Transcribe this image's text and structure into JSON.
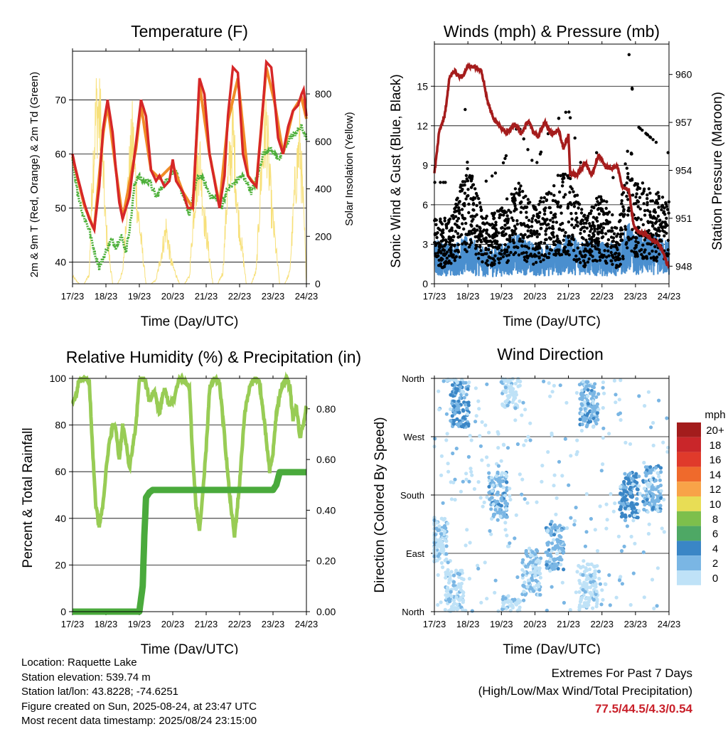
{
  "chart_data": [
    {
      "type": "line",
      "title": "Temperature (F)",
      "xlabel": "Time (Day/UTC)",
      "ylabel_left": "2m & 9m T (Red, Orange) & 2m Td (Green)",
      "ylabel_right": "Solar Insolation (Yellow)",
      "x_ticks": [
        "17/23",
        "18/23",
        "19/23",
        "20/23",
        "21/23",
        "22/23",
        "23/23",
        "24/23"
      ],
      "ylim": [
        36,
        79
      ],
      "y_ticks": [
        40,
        50,
        60,
        70
      ],
      "y2lim": [
        0,
        980
      ],
      "y2_ticks": [
        0,
        200,
        400,
        600,
        800
      ],
      "grid": true,
      "colors": {
        "t2m": "#d62728",
        "t9m": "#f08c28",
        "td": "#4db03a",
        "solar": "#f7e07a"
      },
      "series": [
        {
          "name": "2m T",
          "x": [
            0,
            0.1,
            0.35,
            0.5,
            0.65,
            0.8,
            0.92,
            1.05,
            1.2,
            1.3,
            1.4,
            1.5,
            1.7,
            1.9,
            2.05,
            2.2,
            2.35,
            2.5,
            2.6,
            2.75,
            2.9,
            3.0,
            3.1,
            3.3,
            3.45,
            3.6,
            3.7,
            3.8,
            3.95,
            4.1,
            4.25,
            4.4,
            4.55,
            4.65,
            4.8,
            4.95,
            5.1,
            5.25,
            5.35,
            5.5,
            5.65,
            5.8,
            5.95,
            6.05,
            6.15,
            6.3,
            6.45,
            6.6,
            6.75,
            6.85,
            6.92,
            7.0
          ],
          "values": [
            60,
            57,
            51,
            48,
            46,
            54,
            65,
            70,
            64,
            57,
            51,
            48,
            52,
            62,
            70,
            67,
            57,
            55,
            56,
            54,
            55,
            59,
            55,
            53,
            50,
            50,
            62,
            74,
            71,
            60,
            55,
            50,
            56,
            67,
            76,
            75,
            60,
            56,
            55,
            54,
            65,
            77,
            76,
            70,
            63,
            60,
            65,
            68,
            69,
            71,
            72,
            67
          ]
        },
        {
          "name": "9m T",
          "x": [
            0,
            0.35,
            0.65,
            0.92,
            1.05,
            1.3,
            1.5,
            1.9,
            2.05,
            2.35,
            2.6,
            3.0,
            3.3,
            3.6,
            3.8,
            4.1,
            4.4,
            4.65,
            4.95,
            5.25,
            5.5,
            5.8,
            6.05,
            6.3,
            6.6,
            6.85,
            7.0
          ],
          "values": [
            59.5,
            50.5,
            46,
            64,
            69,
            57,
            48,
            61,
            69,
            57,
            55.5,
            58,
            53,
            50,
            73,
            60,
            50.5,
            66,
            74,
            56,
            54,
            76,
            69.5,
            60,
            68,
            70.5,
            66.5
          ]
        },
        {
          "name": "2m Td",
          "x": [
            0,
            0.15,
            0.3,
            0.5,
            0.65,
            0.8,
            1.0,
            1.15,
            1.3,
            1.45,
            1.6,
            1.75,
            1.85,
            1.95,
            2.1,
            2.3,
            2.5,
            2.7,
            2.9,
            3.1,
            3.3,
            3.5,
            3.7,
            3.85,
            4.0,
            4.15,
            4.3,
            4.45,
            4.6,
            4.75,
            4.9,
            5.05,
            5.2,
            5.35,
            5.5,
            5.7,
            5.9,
            6.05,
            6.2,
            6.35,
            6.5,
            6.7,
            6.85,
            7.0
          ],
          "values": [
            59,
            53,
            49,
            46,
            42,
            39,
            42,
            44,
            43,
            45,
            42,
            48,
            54,
            56,
            55,
            55,
            52,
            54,
            56,
            57,
            52,
            49,
            55,
            56,
            54,
            52,
            52,
            50,
            53,
            54,
            55,
            56,
            55,
            53,
            55,
            60,
            61,
            60,
            59,
            61,
            63,
            64,
            65,
            63
          ]
        },
        {
          "name": "Solar Insolation",
          "x": [
            0,
            0.2,
            0.35,
            0.5,
            0.6,
            0.72,
            0.85,
            1.0,
            1.2,
            1.35,
            1.5,
            1.65,
            1.8,
            1.95,
            2.2,
            2.35,
            2.5,
            2.65,
            2.8,
            2.95,
            3.2,
            3.35,
            3.5,
            3.65,
            3.8,
            3.95,
            4.2,
            4.35,
            4.5,
            4.65,
            4.8,
            4.95,
            5.2,
            5.35,
            5.5,
            5.65,
            5.8,
            5.95,
            6.2,
            6.35,
            6.5,
            6.65,
            6.8,
            6.95,
            7.0
          ],
          "values": [
            40,
            0,
            0,
            50,
            600,
            960,
            850,
            300,
            0,
            0,
            60,
            500,
            800,
            400,
            0,
            0,
            20,
            150,
            300,
            120,
            0,
            0,
            40,
            450,
            700,
            350,
            0,
            0,
            60,
            550,
            820,
            380,
            0,
            0,
            70,
            600,
            860,
            420,
            0,
            0,
            60,
            500,
            780,
            250,
            0
          ]
        }
      ]
    },
    {
      "type": "line",
      "title": "Winds (mph) & Pressure (mb)",
      "xlabel": "Time (Day/UTC)",
      "ylabel_left": "Sonic Wind & Gust (Blue, Black)",
      "ylabel_right": "Station Pressure (Maroon)",
      "x_ticks": [
        "17/23",
        "18/23",
        "19/23",
        "20/23",
        "21/23",
        "22/23",
        "23/23",
        "24/23"
      ],
      "ylim": [
        0,
        18.2
      ],
      "y_ticks": [
        0,
        3,
        6,
        9,
        12,
        15
      ],
      "y2lim": [
        946.9,
        961.9
      ],
      "y2_ticks": [
        948,
        951,
        954,
        957,
        960
      ],
      "grid": true,
      "colors": {
        "wind": "#4a8fcf",
        "gust": "#000000",
        "pressure": "#a51c1c"
      },
      "series": [
        {
          "name": "Pressure",
          "x": [
            0,
            0.15,
            0.3,
            0.45,
            0.6,
            0.8,
            1.0,
            1.2,
            1.4,
            1.6,
            1.8,
            1.95,
            2.15,
            2.4,
            2.6,
            2.8,
            2.95,
            3.1,
            3.3,
            3.5,
            3.7,
            3.85,
            4.0,
            4.05,
            4.25,
            4.5,
            4.7,
            4.9,
            5.1,
            5.3,
            5.45,
            5.6,
            5.8,
            5.95,
            6.1,
            6.3,
            6.5,
            6.7,
            6.85,
            6.95,
            7.0
          ],
          "values": [
            953.8,
            956.5,
            957.3,
            959.8,
            960.2,
            959.8,
            960.5,
            960.5,
            960.3,
            958.2,
            957.1,
            956.8,
            956.3,
            956.9,
            956.3,
            957.1,
            956.4,
            956.1,
            957.1,
            956.2,
            956.6,
            955.4,
            956.2,
            953.9,
            953.7,
            954.5,
            953.7,
            955.0,
            954.2,
            954.1,
            954.3,
            953.0,
            952.8,
            950.5,
            950.1,
            950.0,
            949.6,
            949.4,
            948.8,
            948.0,
            948.1
          ]
        },
        {
          "name": "Wind",
          "x": [
            0,
            0.5,
            1.0,
            1.5,
            2.0,
            2.5,
            3.0,
            3.5,
            4.0,
            4.5,
            5.0,
            5.5,
            5.8,
            6.0,
            6.5,
            7.0
          ],
          "values": [
            2.0,
            1.8,
            2.2,
            1.6,
            1.8,
            2.3,
            1.8,
            1.8,
            2.2,
            2.0,
            1.9,
            1.8,
            2.8,
            2.2,
            2.2,
            2.0
          ]
        },
        {
          "name": "Gust",
          "x": [
            0,
            0.5,
            1.0,
            1.5,
            2.0,
            2.5,
            3.0,
            3.5,
            4.0,
            4.5,
            5.0,
            5.5,
            5.8,
            6.0,
            6.5,
            7.0
          ],
          "values": [
            3.5,
            3.5,
            6.5,
            3.5,
            4.0,
            5.5,
            4.0,
            5.5,
            6.0,
            3.5,
            5.0,
            3.0,
            8.0,
            5.5,
            5.0,
            4.5
          ]
        }
      ]
    },
    {
      "type": "line",
      "title": "Relative Humidity (%) & Precipitation (in)",
      "xlabel": "Time (Day/UTC)",
      "ylabel_left": "Percent & Total Rainfall",
      "x_ticks": [
        "17/23",
        "18/23",
        "19/23",
        "20/23",
        "21/23",
        "22/23",
        "23/23",
        "24/23"
      ],
      "ylim": [
        0,
        100
      ],
      "y_ticks": [
        0,
        20,
        40,
        60,
        80,
        100
      ],
      "y2lim": [
        0,
        0.92
      ],
      "y2_ticks": [
        0.0,
        0.2,
        0.4,
        0.6,
        0.8
      ],
      "grid": true,
      "colors": {
        "rh": "#98cc55",
        "precip": "#4aaa3c"
      },
      "series": [
        {
          "name": "RH",
          "x": [
            0,
            0.1,
            0.2,
            0.35,
            0.5,
            0.6,
            0.7,
            0.8,
            0.9,
            1.0,
            1.1,
            1.2,
            1.3,
            1.4,
            1.5,
            1.6,
            1.7,
            1.8,
            1.9,
            2.0,
            2.1,
            2.2,
            2.3,
            2.45,
            2.6,
            2.75,
            2.9,
            3.05,
            3.2,
            3.35,
            3.5,
            3.6,
            3.7,
            3.8,
            3.9,
            4.0,
            4.1,
            4.25,
            4.4,
            4.55,
            4.7,
            4.85,
            5.0,
            5.15,
            5.3,
            5.45,
            5.6,
            5.75,
            5.9,
            6.0,
            6.1,
            6.25,
            6.4,
            6.5,
            6.6,
            6.7,
            6.8,
            6.9,
            7.0
          ],
          "values": [
            90,
            92,
            100,
            100,
            99,
            70,
            45,
            37,
            45,
            60,
            72,
            80,
            78,
            65,
            80,
            72,
            62,
            70,
            80,
            100,
            100,
            98,
            90,
            95,
            85,
            96,
            88,
            92,
            100,
            99,
            96,
            65,
            45,
            35,
            50,
            70,
            95,
            100,
            98,
            75,
            50,
            32,
            55,
            85,
            96,
            100,
            98,
            80,
            60,
            68,
            85,
            96,
            100,
            97,
            82,
            88,
            75,
            80,
            88
          ]
        },
        {
          "name": "Precipitation",
          "x": [
            0,
            2.0,
            2.1,
            2.15,
            2.2,
            2.3,
            2.4,
            6.0,
            6.1,
            6.2,
            7.0
          ],
          "values": [
            0.0,
            0.0,
            0.1,
            0.3,
            0.45,
            0.47,
            0.48,
            0.48,
            0.5,
            0.55,
            0.55
          ]
        }
      ]
    },
    {
      "type": "scatter",
      "title": "Wind Direction",
      "xlabel": "Time (Day/UTC)",
      "ylabel": "Direction (Colored By Speed)",
      "x_ticks": [
        "17/23",
        "18/23",
        "19/23",
        "20/23",
        "21/23",
        "22/23",
        "23/23",
        "24/23"
      ],
      "y_ticks": [
        "North",
        "East",
        "South",
        "West",
        "North"
      ],
      "ylim": [
        0,
        360
      ],
      "grid": true,
      "legend": {
        "title": "mph",
        "placement": "right",
        "labels": [
          "20+",
          "18",
          "16",
          "14",
          "12",
          "10",
          "8",
          "6",
          "4",
          "2",
          "0"
        ],
        "colors": [
          "#a31c1c",
          "#c9262a",
          "#e03a2b",
          "#ef6a2c",
          "#f8a348",
          "#e8dd55",
          "#7dbf4c",
          "#4ea865",
          "#3a86c6",
          "#7ab6e4",
          "#bfe2f7"
        ]
      },
      "clusters": [
        {
          "x": 0.1,
          "dir_center": 110,
          "speed": 1.5
        },
        {
          "x": 0.75,
          "dir_center": 320,
          "speed": 4
        },
        {
          "x": 0.6,
          "dir_center": 30,
          "speed": 1
        },
        {
          "x": 1.9,
          "dir_center": 180,
          "speed": 3
        },
        {
          "x": 2.9,
          "dir_center": 60,
          "speed": 2
        },
        {
          "x": 3.6,
          "dir_center": 100,
          "speed": 3
        },
        {
          "x": 4.6,
          "dir_center": 320,
          "speed": 3
        },
        {
          "x": 4.6,
          "dir_center": 40,
          "speed": 1
        },
        {
          "x": 5.8,
          "dir_center": 180,
          "speed": 4.5
        },
        {
          "x": 6.5,
          "dir_center": 190,
          "speed": 3
        },
        {
          "x": 2.3,
          "dir_center": 350,
          "speed": 1
        }
      ]
    }
  ],
  "info": {
    "location": "Location: Raquette Lake",
    "elevation": "Station elevation: 539.74 m",
    "latlon": "Station lat/lon: 43.8228; -74.6251",
    "created": "Figure created on Sun, 2025-08-24, at 23:47 UTC",
    "recent": "Most recent data timestamp: 2025/08/24 23:15:00"
  },
  "extremes": {
    "heading": "Extremes For Past 7 Days",
    "subheading": "(High/Low/Max Wind/Total Precipitation)",
    "values": "77.5/44.5/4.3/0.54"
  }
}
